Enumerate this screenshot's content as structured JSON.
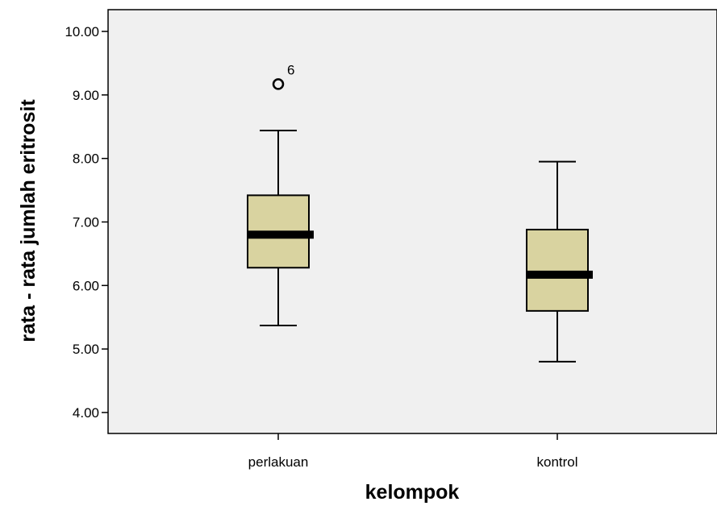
{
  "chart_data": {
    "type": "box",
    "xlabel": "kelompok",
    "ylabel": "rata - rata jumlah eritrosit",
    "ylim": [
      3.7,
      10.3
    ],
    "yticks": [
      4.0,
      5.0,
      6.0,
      7.0,
      8.0,
      9.0,
      10.0
    ],
    "ytick_labels": [
      "4.00",
      "5.00",
      "6.00",
      "7.00",
      "8.00",
      "9.00",
      "10.00"
    ],
    "categories": [
      "perlakuan",
      "kontrol"
    ],
    "boxes": [
      {
        "category": "perlakuan",
        "min": 5.37,
        "q1": 6.28,
        "median": 6.8,
        "q3": 7.42,
        "max": 8.44,
        "outliers": [
          {
            "value": 9.17,
            "label": "6"
          }
        ]
      },
      {
        "category": "kontrol",
        "min": 4.8,
        "q1": 5.6,
        "median": 6.17,
        "q3": 6.88,
        "max": 7.95,
        "outliers": []
      }
    ],
    "colors": {
      "plot_background": "#f0f0f0",
      "box_fill": "#d9d3a0",
      "stroke": "#000000"
    },
    "grid": false,
    "legend": "none"
  }
}
